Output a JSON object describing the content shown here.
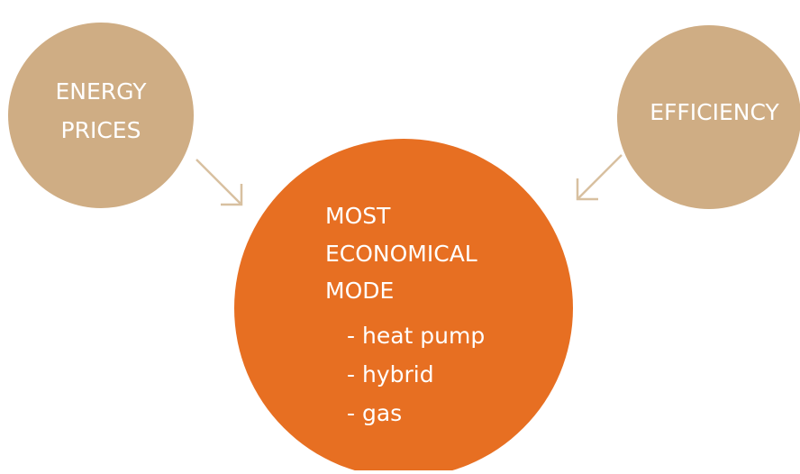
{
  "nodes": [
    {
      "label_lines": [
        "ENERGY",
        "PRICES"
      ]
    },
    {
      "label_lines": [
        "EFFICIENCY"
      ]
    },
    {
      "label_lines": [
        "MOST",
        "ECONOMICAL",
        "MODE"
      ],
      "items": [
        "- heat pump",
        "- hybrid",
        "- gas"
      ]
    }
  ]
}
